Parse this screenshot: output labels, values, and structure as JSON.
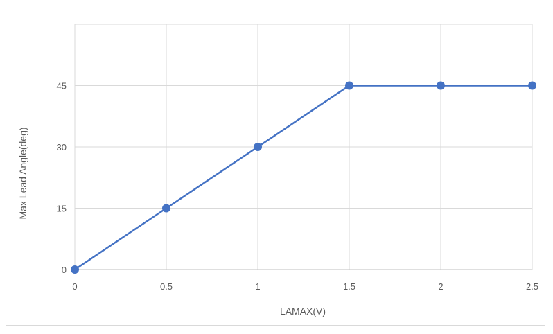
{
  "chart_data": {
    "type": "line",
    "title": "",
    "xlabel": "LAMAX(V)",
    "ylabel": "Max Lead  Angle(deg)",
    "x_ticks": [
      "0",
      "0.5",
      "1",
      "1.5",
      "2",
      "2.5"
    ],
    "y_ticks": [
      "0",
      "15",
      "30",
      "45"
    ],
    "xlim": [
      0,
      2.5
    ],
    "ylim": [
      0,
      60
    ],
    "grid": true,
    "series": [
      {
        "x": [
          0,
          0.5,
          1,
          1.5,
          2,
          2.5
        ],
        "y": [
          0,
          15,
          30,
          45,
          45,
          45
        ]
      }
    ],
    "colors": {
      "line": "#4472c4",
      "grid": "#d9d9d9",
      "axis": "#bfbfbf"
    }
  }
}
